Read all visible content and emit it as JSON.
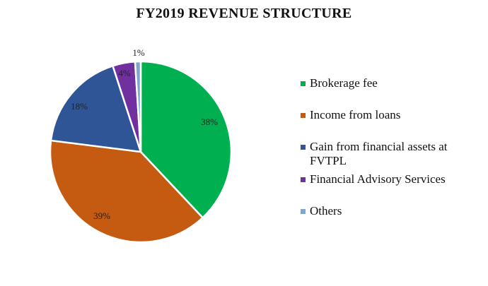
{
  "title": "FY2019 REVENUE STRUCTURE",
  "chart_data": {
    "type": "pie",
    "title": "FY2019 REVENUE STRUCTURE",
    "categories": [
      "Brokerage fee",
      "Income from loans",
      "Gain from financial assets at FVTPL",
      "Financial Advisory Services",
      "Others"
    ],
    "values": [
      38,
      39,
      18,
      4,
      1
    ],
    "labels": [
      "38%",
      "39%",
      "18%",
      "4%",
      "1%"
    ],
    "colors": [
      "#00b050",
      "#c55a11",
      "#2f5597",
      "#7030a0",
      "#7ba7d1"
    ],
    "start_angle": "12 o'clock",
    "direction": "clockwise",
    "legend_position": "right"
  },
  "legend": {
    "items": [
      {
        "label": "Brokerage fee",
        "color": "#00b050"
      },
      {
        "label": "Income from loans",
        "color": "#c55a11"
      },
      {
        "label": "Gain from financial assets at FVTPL",
        "color": "#2f5597"
      },
      {
        "label": "Financial Advisory Services",
        "color": "#7030a0"
      },
      {
        "label": "Others",
        "color": "#7ba7d1"
      }
    ]
  }
}
